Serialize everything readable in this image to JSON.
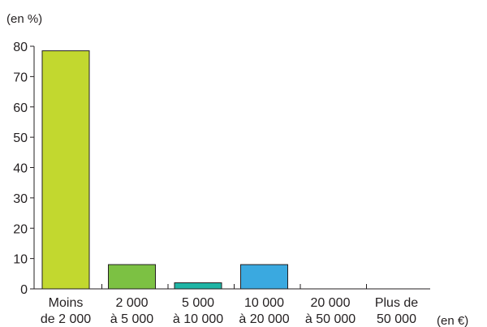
{
  "chart_data": {
    "type": "bar",
    "ylabel": "(en %)",
    "xlabel": "(en €)",
    "ylim": [
      0,
      80
    ],
    "yticks": [
      0,
      10,
      20,
      30,
      40,
      50,
      60,
      70,
      80
    ],
    "categories": [
      [
        "Moins",
        "de 2 000"
      ],
      [
        "2 000",
        "à 5 000"
      ],
      [
        "5 000",
        "à 10 000"
      ],
      [
        "10 000",
        "à 20 000"
      ],
      [
        "20 000",
        "à 50 000"
      ],
      [
        "Plus de",
        "50 000"
      ]
    ],
    "values": [
      78.5,
      8,
      2,
      8,
      0,
      0
    ],
    "colors": [
      "#c2d82f",
      "#7cc143",
      "#1fb5a5",
      "#3aa9e0",
      "#ffffff",
      "#ffffff"
    ],
    "bar_edge_color": "#231f20",
    "grid": false,
    "legend": "none"
  }
}
